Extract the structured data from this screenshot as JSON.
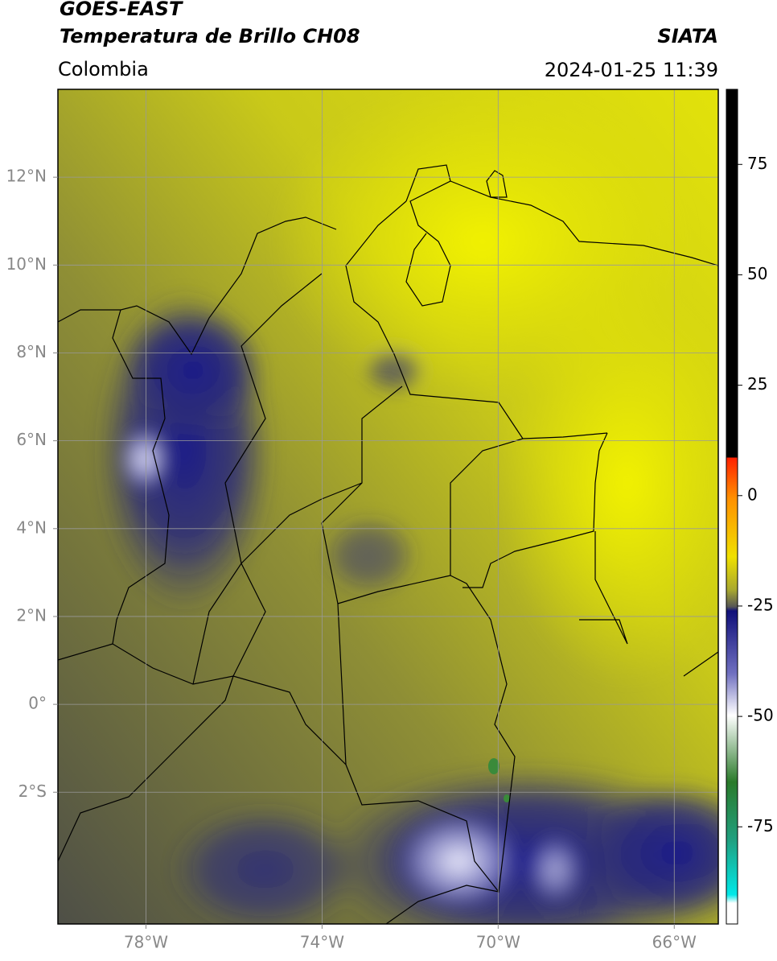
{
  "header": {
    "title_line1": "GOES-EAST",
    "title_line2": "Temperatura de Brillo CH08",
    "agency": "SIATA",
    "region": "Colombia",
    "timestamp": "2024-01-25 11:39"
  },
  "map": {
    "xlim": [
      -80,
      -65
    ],
    "ylim": [
      -5,
      14
    ],
    "xticks": [
      {
        "value": -78,
        "label": "78°W"
      },
      {
        "value": -74,
        "label": "74°W"
      },
      {
        "value": -70,
        "label": "70°W"
      },
      {
        "value": -66,
        "label": "66°W"
      }
    ],
    "yticks": [
      {
        "value": -2,
        "label": "2°S"
      },
      {
        "value": 0,
        "label": "0°"
      },
      {
        "value": 2,
        "label": "2°N"
      },
      {
        "value": 4,
        "label": "4°N"
      },
      {
        "value": 6,
        "label": "6°N"
      },
      {
        "value": 8,
        "label": "8°N"
      },
      {
        "value": 10,
        "label": "10°N"
      },
      {
        "value": 12,
        "label": "12°N"
      }
    ],
    "grid": true
  },
  "colorbar": {
    "ylim": [
      -97,
      92
    ],
    "yticks": [
      -75,
      -50,
      -25,
      0,
      25,
      50,
      75
    ]
  }
}
